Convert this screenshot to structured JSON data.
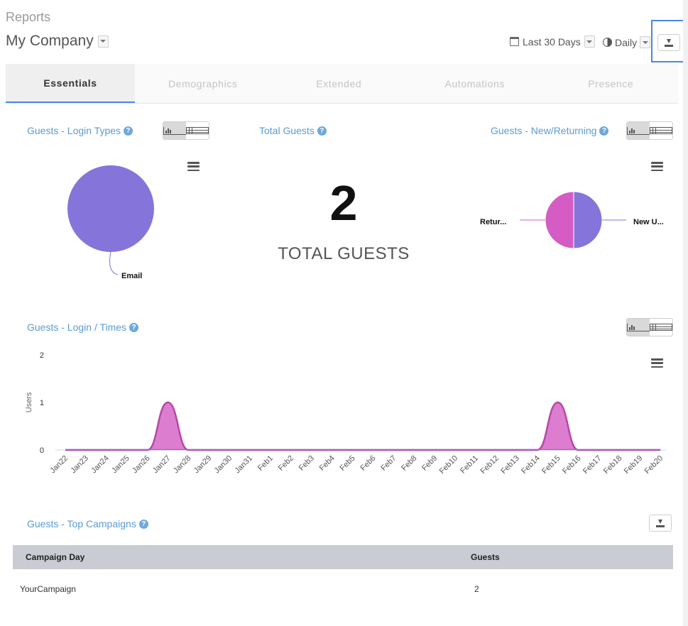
{
  "header": {
    "breadcrumb": "Reports",
    "company": "My Company",
    "date_range": "Last 30 Days",
    "frequency": "Daily"
  },
  "tabs": [
    {
      "label": "Essentials",
      "active": true
    },
    {
      "label": "Demographics",
      "active": false
    },
    {
      "label": "Extended",
      "active": false
    },
    {
      "label": "Automations",
      "active": false
    },
    {
      "label": "Presence",
      "active": false
    }
  ],
  "login_types": {
    "title": "Guests - Login Types",
    "slices": [
      {
        "label": "Email",
        "value": 100,
        "color": "#8574d9"
      }
    ]
  },
  "total_guests": {
    "title": "Total Guests",
    "value": "2",
    "label": "TOTAL GUESTS"
  },
  "new_returning": {
    "title": "Guests - New/Returning",
    "slices": [
      {
        "label": "Retur...",
        "value": 50,
        "color": "#d45cc4"
      },
      {
        "label": "New U...",
        "value": 50,
        "color": "#8574d9"
      }
    ]
  },
  "login_times": {
    "title": "Guests - Login / Times"
  },
  "chart_data": {
    "type": "area",
    "ylabel": "Users",
    "ylim": [
      0,
      2
    ],
    "yticks": [
      "0",
      "1",
      "2"
    ],
    "categories": [
      "Jan22",
      "Jan23",
      "Jan24",
      "Jan25",
      "Jan26",
      "Jan27",
      "Jan28",
      "Jan29",
      "Jan30",
      "Jan31",
      "Feb1",
      "Feb2",
      "Feb3",
      "Feb4",
      "Feb5",
      "Feb6",
      "Feb7",
      "Feb8",
      "Feb9",
      "Feb10",
      "Feb11",
      "Feb12",
      "Feb13",
      "Feb14",
      "Feb15",
      "Feb16",
      "Feb17",
      "Feb18",
      "Feb19",
      "Feb20"
    ],
    "series": [
      {
        "values": [
          0,
          0,
          0,
          0,
          0,
          1,
          0,
          0,
          0,
          0,
          0,
          0,
          0,
          0,
          0,
          0,
          0,
          0,
          0,
          0,
          0,
          0,
          0,
          0,
          1,
          0,
          0,
          0,
          0,
          0
        ],
        "color": "#d45cc4"
      }
    ]
  },
  "campaigns": {
    "title": "Guests - Top Campaigns",
    "columns": [
      "Campaign Day",
      "Guests"
    ],
    "rows": [
      [
        "YourCampaign",
        "2"
      ]
    ]
  },
  "icons": {
    "download": "download-icon",
    "calendar": "calendar-icon",
    "frequency": "half-circle-icon",
    "menu": "hamburger-menu-icon",
    "help": "help-icon",
    "bar_view": "bar-chart-icon",
    "table_view": "table-icon"
  },
  "help_glyph": "?"
}
